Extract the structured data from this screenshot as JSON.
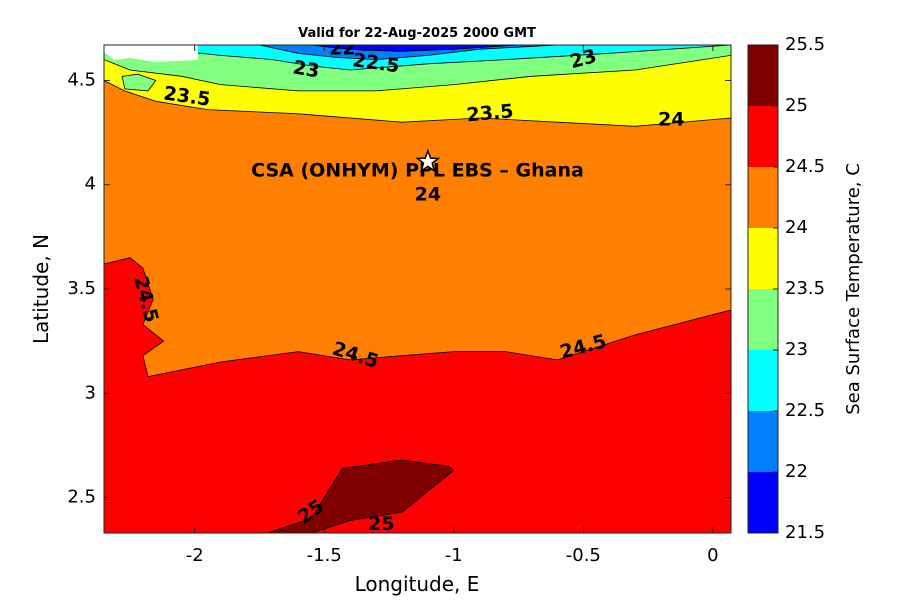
{
  "chart_data": {
    "type": "heatmap",
    "subtype": "filled-contour",
    "title": "Valid for 22-Aug-2025 2000 GMT",
    "xlabel": "Longitude, E",
    "ylabel": "Latitude, N",
    "xlim": [
      -2.35,
      0.07
    ],
    "ylim": [
      2.33,
      4.67
    ],
    "xticks": [
      -2,
      -1.5,
      -1,
      -0.5,
      0
    ],
    "xtick_labels": [
      "-2",
      "-1.5",
      "-1",
      "-0.5",
      "0"
    ],
    "yticks": [
      2.5,
      3,
      3.5,
      4,
      4.5
    ],
    "ytick_labels": [
      "2.5",
      "3",
      "3.5",
      "4",
      "4.5"
    ],
    "grid": false,
    "colorbar": {
      "label": "Sea Surface Temperature, C",
      "levels": [
        21.5,
        22,
        22.5,
        23,
        23.5,
        24,
        24.5,
        25,
        25.5
      ],
      "tick_labels": [
        "21.5",
        "22",
        "22.5",
        "23",
        "23.5",
        "24",
        "24.5",
        "25",
        "25.5"
      ],
      "colors": [
        "#0000ff",
        "#0080ff",
        "#00ffff",
        "#80ff80",
        "#ffff00",
        "#ff8000",
        "#ff0000",
        "#800000"
      ]
    },
    "regions": [
      {
        "level": 23.0,
        "color": "#80ff80",
        "polygon": [
          [
            -2.35,
            4.67
          ],
          [
            0.07,
            4.67
          ],
          [
            0.07,
            4.62
          ],
          [
            -0.3,
            4.55
          ],
          [
            -0.7,
            4.52
          ],
          [
            -1.0,
            4.48
          ],
          [
            -1.3,
            4.45
          ],
          [
            -1.6,
            4.45
          ],
          [
            -1.9,
            4.48
          ],
          [
            -2.05,
            4.52
          ],
          [
            -2.25,
            4.55
          ],
          [
            -2.35,
            4.6
          ]
        ]
      },
      {
        "level": 23.5,
        "color": "#ffff00",
        "polygon": [
          [
            -2.35,
            4.5
          ],
          [
            -2.27,
            4.45
          ],
          [
            -2.15,
            4.4
          ],
          [
            -1.95,
            4.36
          ],
          [
            -1.6,
            4.34
          ],
          [
            -1.2,
            4.3
          ],
          [
            -0.9,
            4.32
          ],
          [
            -0.6,
            4.3
          ],
          [
            -0.3,
            4.28
          ],
          [
            0.07,
            4.32
          ],
          [
            0.07,
            4.67
          ],
          [
            -2.35,
            4.67
          ]
        ]
      },
      {
        "level": 23.0,
        "color": "#80ff80",
        "polygon": [
          [
            -2.27,
            4.46
          ],
          [
            -2.18,
            4.45
          ],
          [
            -2.15,
            4.5
          ],
          [
            -2.22,
            4.53
          ],
          [
            -2.28,
            4.52
          ]
        ]
      },
      {
        "level": 23.0,
        "color": "#80ff80",
        "polygon": [
          [
            -2.35,
            4.67
          ],
          [
            0.07,
            4.67
          ],
          [
            0.07,
            4.62
          ],
          [
            -0.3,
            4.55
          ],
          [
            -0.7,
            4.52
          ],
          [
            -1.0,
            4.48
          ],
          [
            -1.3,
            4.45
          ],
          [
            -1.6,
            4.45
          ],
          [
            -1.9,
            4.48
          ],
          [
            -2.05,
            4.52
          ],
          [
            -2.25,
            4.55
          ],
          [
            -2.35,
            4.6
          ]
        ]
      },
      {
        "level": 22.5,
        "color": "#00ffff",
        "polygon": [
          [
            -2.35,
            4.67
          ],
          [
            0.07,
            4.67
          ],
          [
            -0.4,
            4.63
          ],
          [
            -0.8,
            4.6
          ],
          [
            -1.1,
            4.58
          ],
          [
            -1.4,
            4.55
          ],
          [
            -1.55,
            4.57
          ],
          [
            -1.7,
            4.6
          ],
          [
            -1.9,
            4.62
          ],
          [
            -2.05,
            4.64
          ],
          [
            -2.2,
            4.65
          ],
          [
            -2.35,
            4.66
          ]
        ]
      },
      {
        "level": 22.0,
        "color": "#0080ff",
        "polygon": [
          [
            -1.75,
            4.67
          ],
          [
            -0.6,
            4.67
          ],
          [
            -0.9,
            4.65
          ],
          [
            -1.1,
            4.62
          ],
          [
            -1.3,
            4.6
          ],
          [
            -1.45,
            4.61
          ],
          [
            -1.6,
            4.63
          ]
        ]
      },
      {
        "level": 21.5,
        "color": "#0000ff",
        "polygon": [
          [
            -1.55,
            4.67
          ],
          [
            -0.75,
            4.67
          ],
          [
            -1.0,
            4.65
          ],
          [
            -1.2,
            4.64
          ],
          [
            -1.35,
            4.645
          ],
          [
            -1.45,
            4.655
          ]
        ]
      },
      {
        "level": 24.5,
        "color": "#ff0000",
        "polygon": [
          [
            -2.35,
            3.62
          ],
          [
            -2.25,
            3.65
          ],
          [
            -2.2,
            3.6
          ],
          [
            -2.16,
            3.45
          ],
          [
            -2.2,
            3.33
          ],
          [
            -2.12,
            3.25
          ],
          [
            -2.2,
            3.18
          ],
          [
            -2.18,
            3.08
          ],
          [
            -1.9,
            3.15
          ],
          [
            -1.6,
            3.2
          ],
          [
            -1.4,
            3.16
          ],
          [
            -1.2,
            3.18
          ],
          [
            -1.0,
            3.2
          ],
          [
            -0.8,
            3.2
          ],
          [
            -0.6,
            3.16
          ],
          [
            -0.3,
            3.28
          ],
          [
            0.07,
            3.4
          ],
          [
            0.07,
            2.33
          ],
          [
            -2.35,
            2.33
          ]
        ]
      },
      {
        "level": 25.0,
        "color": "#800000",
        "polygon": [
          [
            -1.72,
            2.33
          ],
          [
            -1.55,
            2.4
          ],
          [
            -1.5,
            2.5
          ],
          [
            -1.43,
            2.64
          ],
          [
            -1.2,
            2.68
          ],
          [
            -1.02,
            2.65
          ],
          [
            -1.0,
            2.63
          ],
          [
            -1.08,
            2.55
          ],
          [
            -1.2,
            2.43
          ],
          [
            -1.4,
            2.39
          ],
          [
            -1.55,
            2.33
          ]
        ]
      }
    ],
    "contour_labels": [
      {
        "text": "22",
        "x": -1.43,
        "y": 4.65,
        "rotate": 0
      },
      {
        "text": "22.5",
        "x": -1.3,
        "y": 4.58,
        "rotate": 8
      },
      {
        "text": "23",
        "x": -1.57,
        "y": 4.55,
        "rotate": 10
      },
      {
        "text": "23",
        "x": -0.5,
        "y": 4.6,
        "rotate": -15
      },
      {
        "text": "23.5",
        "x": -2.03,
        "y": 4.42,
        "rotate": 8
      },
      {
        "text": "23.5",
        "x": -0.86,
        "y": 4.34,
        "rotate": -5
      },
      {
        "text": "24",
        "x": -0.16,
        "y": 4.31,
        "rotate": 0
      },
      {
        "text": "24",
        "x": -1.1,
        "y": 3.95,
        "rotate": 0
      },
      {
        "text": "24.5",
        "x": -2.19,
        "y": 3.45,
        "rotate": 75
      },
      {
        "text": "24.5",
        "x": -1.38,
        "y": 3.18,
        "rotate": 18
      },
      {
        "text": "24.5",
        "x": -0.5,
        "y": 3.22,
        "rotate": -15
      },
      {
        "text": "25",
        "x": -1.55,
        "y": 2.43,
        "rotate": -35
      },
      {
        "text": "25",
        "x": -1.28,
        "y": 2.37,
        "rotate": 0
      }
    ],
    "annotations": [
      {
        "text": "CSA (ONHYM) PPL EBS  – Ghana",
        "x": -1.14,
        "y": 4.04,
        "type": "label"
      },
      {
        "text": "",
        "x": -1.1,
        "y": 4.11,
        "type": "star-marker"
      }
    ]
  }
}
